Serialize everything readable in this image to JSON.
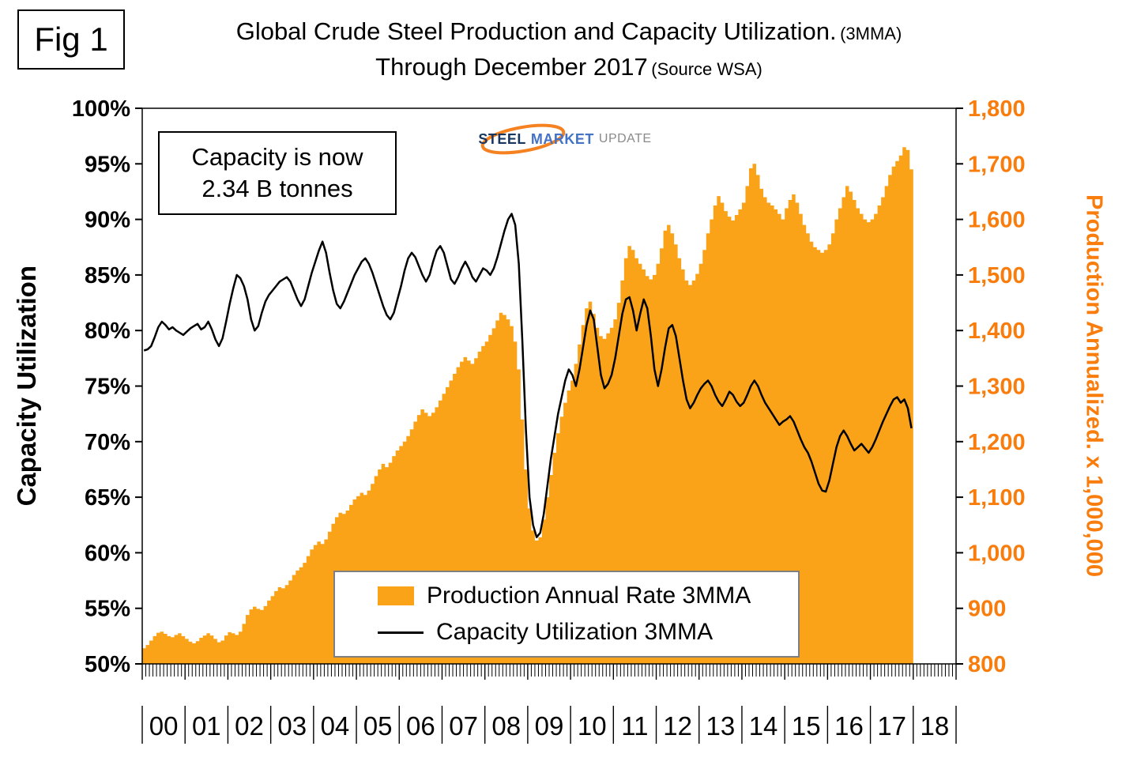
{
  "figure": {
    "label": "Fig 1"
  },
  "title": {
    "line1": "Global Crude Steel Production and Capacity Utilization.",
    "line1_small": "(3MMA)",
    "line2": "Through December 2017",
    "line2_small": "(Source WSA)"
  },
  "annotation": {
    "line1": "Capacity is now",
    "line2": "2.34 B tonnes"
  },
  "logo": {
    "word1": "STEEL",
    "word2": "MARKET",
    "word3": "UPDATE"
  },
  "colors": {
    "production": "#FBA318",
    "utilization_line": "#000000",
    "right_axis_text": "#F87D0D",
    "logo_swoosh": "#F58220"
  },
  "chart_data": {
    "type": "bar",
    "subtype": "monthly bars (right axis) + line (left axis)",
    "x_start": "2000-01",
    "x_end": "2017-12",
    "x_axis": {
      "slots": [
        "00",
        "01",
        "02",
        "03",
        "04",
        "05",
        "06",
        "07",
        "08",
        "09",
        "10",
        "11",
        "12",
        "13",
        "14",
        "15",
        "16",
        "17",
        "18"
      ]
    },
    "left_axis": {
      "title": "Capacity Utilization",
      "min": 50,
      "max": 100,
      "ticks": [
        "100%",
        "95%",
        "90%",
        "85%",
        "80%",
        "75%",
        "70%",
        "65%",
        "60%",
        "55%",
        "50%"
      ]
    },
    "right_axis": {
      "title": "Production Annualized. x 1,000,000",
      "min": 800,
      "max": 1800,
      "ticks": [
        "1,800",
        "1,700",
        "1,600",
        "1,500",
        "1,400",
        "1,300",
        "1,200",
        "1,100",
        "1,000",
        "900",
        "800"
      ]
    },
    "series": [
      {
        "name": "Production Annual Rate 3MMA",
        "type": "bar",
        "axis": "right",
        "color": "#FBA318",
        "values": [
          828,
          834,
          842,
          850,
          856,
          858,
          854,
          850,
          848,
          852,
          855,
          850,
          845,
          840,
          837,
          841,
          847,
          851,
          855,
          851,
          845,
          839,
          842,
          851,
          857,
          855,
          852,
          858,
          872,
          888,
          898,
          903,
          899,
          897,
          904,
          914,
          922,
          931,
          938,
          936,
          942,
          950,
          960,
          968,
          974,
          982,
          994,
          1006,
          1014,
          1020,
          1016,
          1024,
          1038,
          1052,
          1064,
          1072,
          1070,
          1076,
          1086,
          1096,
          1102,
          1108,
          1104,
          1112,
          1124,
          1138,
          1150,
          1160,
          1154,
          1162,
          1174,
          1184,
          1192,
          1200,
          1210,
          1222,
          1236,
          1248,
          1258,
          1252,
          1246,
          1252,
          1262,
          1274,
          1286,
          1298,
          1310,
          1322,
          1334,
          1344,
          1352,
          1346,
          1340,
          1350,
          1362,
          1372,
          1380,
          1392,
          1404,
          1418,
          1432,
          1428,
          1420,
          1408,
          1380,
          1330,
          1240,
          1150,
          1080,
          1040,
          1022,
          1028,
          1060,
          1100,
          1140,
          1180,
          1215,
          1245,
          1270,
          1292,
          1310,
          1340,
          1375,
          1410,
          1440,
          1452,
          1430,
          1405,
          1390,
          1385,
          1395,
          1405,
          1420,
          1450,
          1490,
          1530,
          1552,
          1545,
          1530,
          1520,
          1510,
          1498,
          1492,
          1500,
          1520,
          1548,
          1580,
          1590,
          1575,
          1555,
          1530,
          1510,
          1490,
          1482,
          1490,
          1502,
          1520,
          1545,
          1575,
          1600,
          1625,
          1642,
          1630,
          1615,
          1605,
          1598,
          1608,
          1618,
          1630,
          1660,
          1692,
          1700,
          1680,
          1655,
          1640,
          1630,
          1625,
          1618,
          1610,
          1600,
          1620,
          1635,
          1645,
          1630,
          1610,
          1590,
          1575,
          1560,
          1550,
          1545,
          1540,
          1545,
          1555,
          1575,
          1600,
          1620,
          1640,
          1660,
          1650,
          1635,
          1620,
          1610,
          1600,
          1595,
          1600,
          1610,
          1625,
          1640,
          1660,
          1680,
          1695,
          1705,
          1715,
          1730,
          1725,
          1690
        ]
      },
      {
        "name": "Capacity Utilization 3MMA",
        "type": "line",
        "axis": "left",
        "color": "#000000",
        "values": [
          78.2,
          78.3,
          78.6,
          79.4,
          80.3,
          80.8,
          80.5,
          80.1,
          80.3,
          80.0,
          79.8,
          79.6,
          79.9,
          80.2,
          80.4,
          80.6,
          80.1,
          80.3,
          80.8,
          80.1,
          79.2,
          78.6,
          79.3,
          80.8,
          82.4,
          83.8,
          85.0,
          84.7,
          84.0,
          82.8,
          81.0,
          80.0,
          80.4,
          81.6,
          82.6,
          83.2,
          83.6,
          84.0,
          84.4,
          84.6,
          84.8,
          84.4,
          83.6,
          82.8,
          82.2,
          82.8,
          84.0,
          85.2,
          86.2,
          87.2,
          88.0,
          87.0,
          85.2,
          83.6,
          82.4,
          82.0,
          82.6,
          83.4,
          84.2,
          85.0,
          85.6,
          86.2,
          86.5,
          86.0,
          85.2,
          84.2,
          83.2,
          82.2,
          81.4,
          81.0,
          81.6,
          82.8,
          84.0,
          85.4,
          86.5,
          87.0,
          86.6,
          85.8,
          85.0,
          84.4,
          85.0,
          86.2,
          87.2,
          87.6,
          87.0,
          85.8,
          84.6,
          84.2,
          84.8,
          85.6,
          86.2,
          85.6,
          84.8,
          84.4,
          85.0,
          85.6,
          85.4,
          85.0,
          85.6,
          86.6,
          87.8,
          89.0,
          90.0,
          90.5,
          89.5,
          86.0,
          79.0,
          71.0,
          65.0,
          62.5,
          61.4,
          61.8,
          63.5,
          66.0,
          68.5,
          70.5,
          72.5,
          74.0,
          75.5,
          76.5,
          76.0,
          75.0,
          76.5,
          78.5,
          80.5,
          81.8,
          81.0,
          78.5,
          76.0,
          74.8,
          75.2,
          76.0,
          77.5,
          79.5,
          81.5,
          82.8,
          83.0,
          81.8,
          80.0,
          81.5,
          82.8,
          82.0,
          79.5,
          76.5,
          75.0,
          76.5,
          78.5,
          80.2,
          80.5,
          79.5,
          77.5,
          75.5,
          73.8,
          73.0,
          73.5,
          74.2,
          74.8,
          75.2,
          75.5,
          75.0,
          74.2,
          73.6,
          73.2,
          73.8,
          74.5,
          74.2,
          73.6,
          73.2,
          73.5,
          74.2,
          75.0,
          75.5,
          75.0,
          74.2,
          73.5,
          73.0,
          72.5,
          72.0,
          71.5,
          71.8,
          72.0,
          72.3,
          71.8,
          71.0,
          70.2,
          69.5,
          69.0,
          68.2,
          67.2,
          66.2,
          65.6,
          65.5,
          66.5,
          68.0,
          69.5,
          70.5,
          71.0,
          70.5,
          69.8,
          69.2,
          69.5,
          69.8,
          69.4,
          69.0,
          69.5,
          70.2,
          71.0,
          71.8,
          72.5,
          73.2,
          73.8,
          74.0,
          73.5,
          73.8,
          73.0,
          71.2
        ]
      }
    ]
  }
}
